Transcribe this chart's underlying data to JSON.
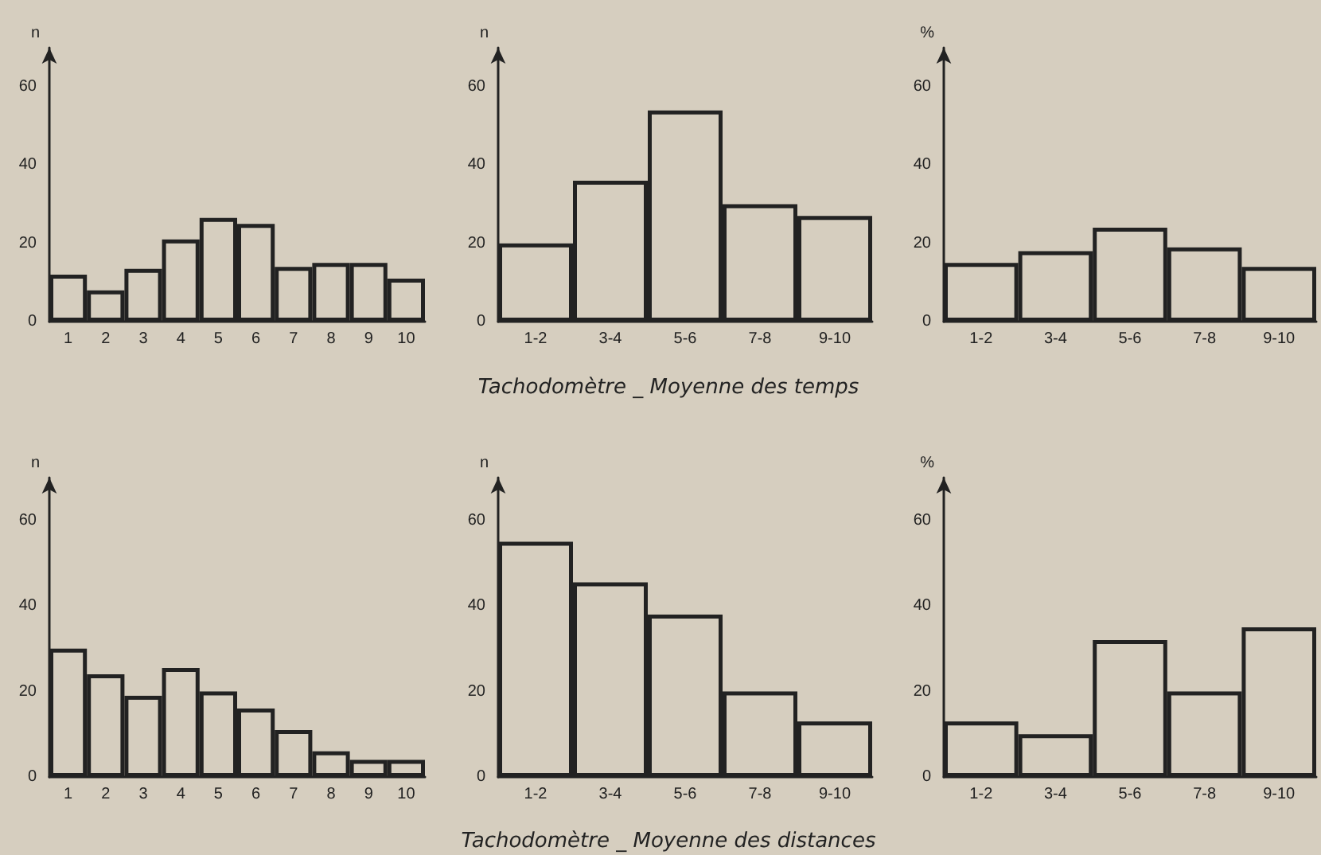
{
  "chart_data": [
    {
      "type": "bar",
      "ylabel": "n",
      "categories": [
        "1",
        "2",
        "3",
        "4",
        "5",
        "6",
        "7",
        "8",
        "9",
        "10"
      ],
      "values": [
        12,
        8,
        13.5,
        21,
        26.5,
        25,
        14,
        15,
        15,
        11
      ],
      "color": "#222222",
      "ylim": [
        0,
        70
      ],
      "yticks": [
        0,
        20,
        40,
        60
      ],
      "grid": false
    },
    {
      "type": "bar",
      "ylabel": "n",
      "categories": [
        "1-2",
        "3-4",
        "5-6",
        "7-8",
        "9-10"
      ],
      "values": [
        20,
        36,
        54,
        30,
        27
      ],
      "color": "#222222",
      "ylim": [
        0,
        70
      ],
      "yticks": [
        0,
        20,
        40,
        60
      ],
      "grid": false,
      "annotations": [
        "Tachodomètre _ Moyenne des temps"
      ]
    },
    {
      "type": "bar",
      "ylabel": "%",
      "categories": [
        "1-2",
        "3-4",
        "5-6",
        "7-8",
        "9-10"
      ],
      "values": [
        15,
        18,
        24,
        19,
        14
      ],
      "color": "#222222",
      "ylim": [
        0,
        70
      ],
      "yticks": [
        0,
        20,
        40,
        60
      ],
      "grid": false
    },
    {
      "type": "bar",
      "ylabel": "n",
      "categories": [
        "1",
        "2",
        "3",
        "4",
        "5",
        "6",
        "7",
        "8",
        "9",
        "10"
      ],
      "values": [
        30,
        24,
        19,
        25.5,
        20,
        16,
        11,
        6,
        4,
        4
      ],
      "color": "#222222",
      "ylim": [
        0,
        70
      ],
      "yticks": [
        0,
        20,
        40,
        60
      ],
      "grid": false
    },
    {
      "type": "bar",
      "ylabel": "n",
      "categories": [
        "1-2",
        "3-4",
        "5-6",
        "7-8",
        "9-10"
      ],
      "values": [
        55,
        45.5,
        38,
        20,
        13
      ],
      "color": "#222222",
      "ylim": [
        0,
        70
      ],
      "yticks": [
        0,
        20,
        40,
        60
      ],
      "grid": false,
      "annotations": [
        "Tachodomètre _ Moyenne des distances"
      ]
    },
    {
      "type": "bar",
      "ylabel": "%",
      "categories": [
        "1-2",
        "3-4",
        "5-6",
        "7-8",
        "9-10"
      ],
      "values": [
        13,
        10,
        32,
        20,
        35
      ],
      "color": "#222222",
      "ylim": [
        0,
        70
      ],
      "yticks": [
        0,
        20,
        40,
        60
      ],
      "grid": false
    }
  ]
}
